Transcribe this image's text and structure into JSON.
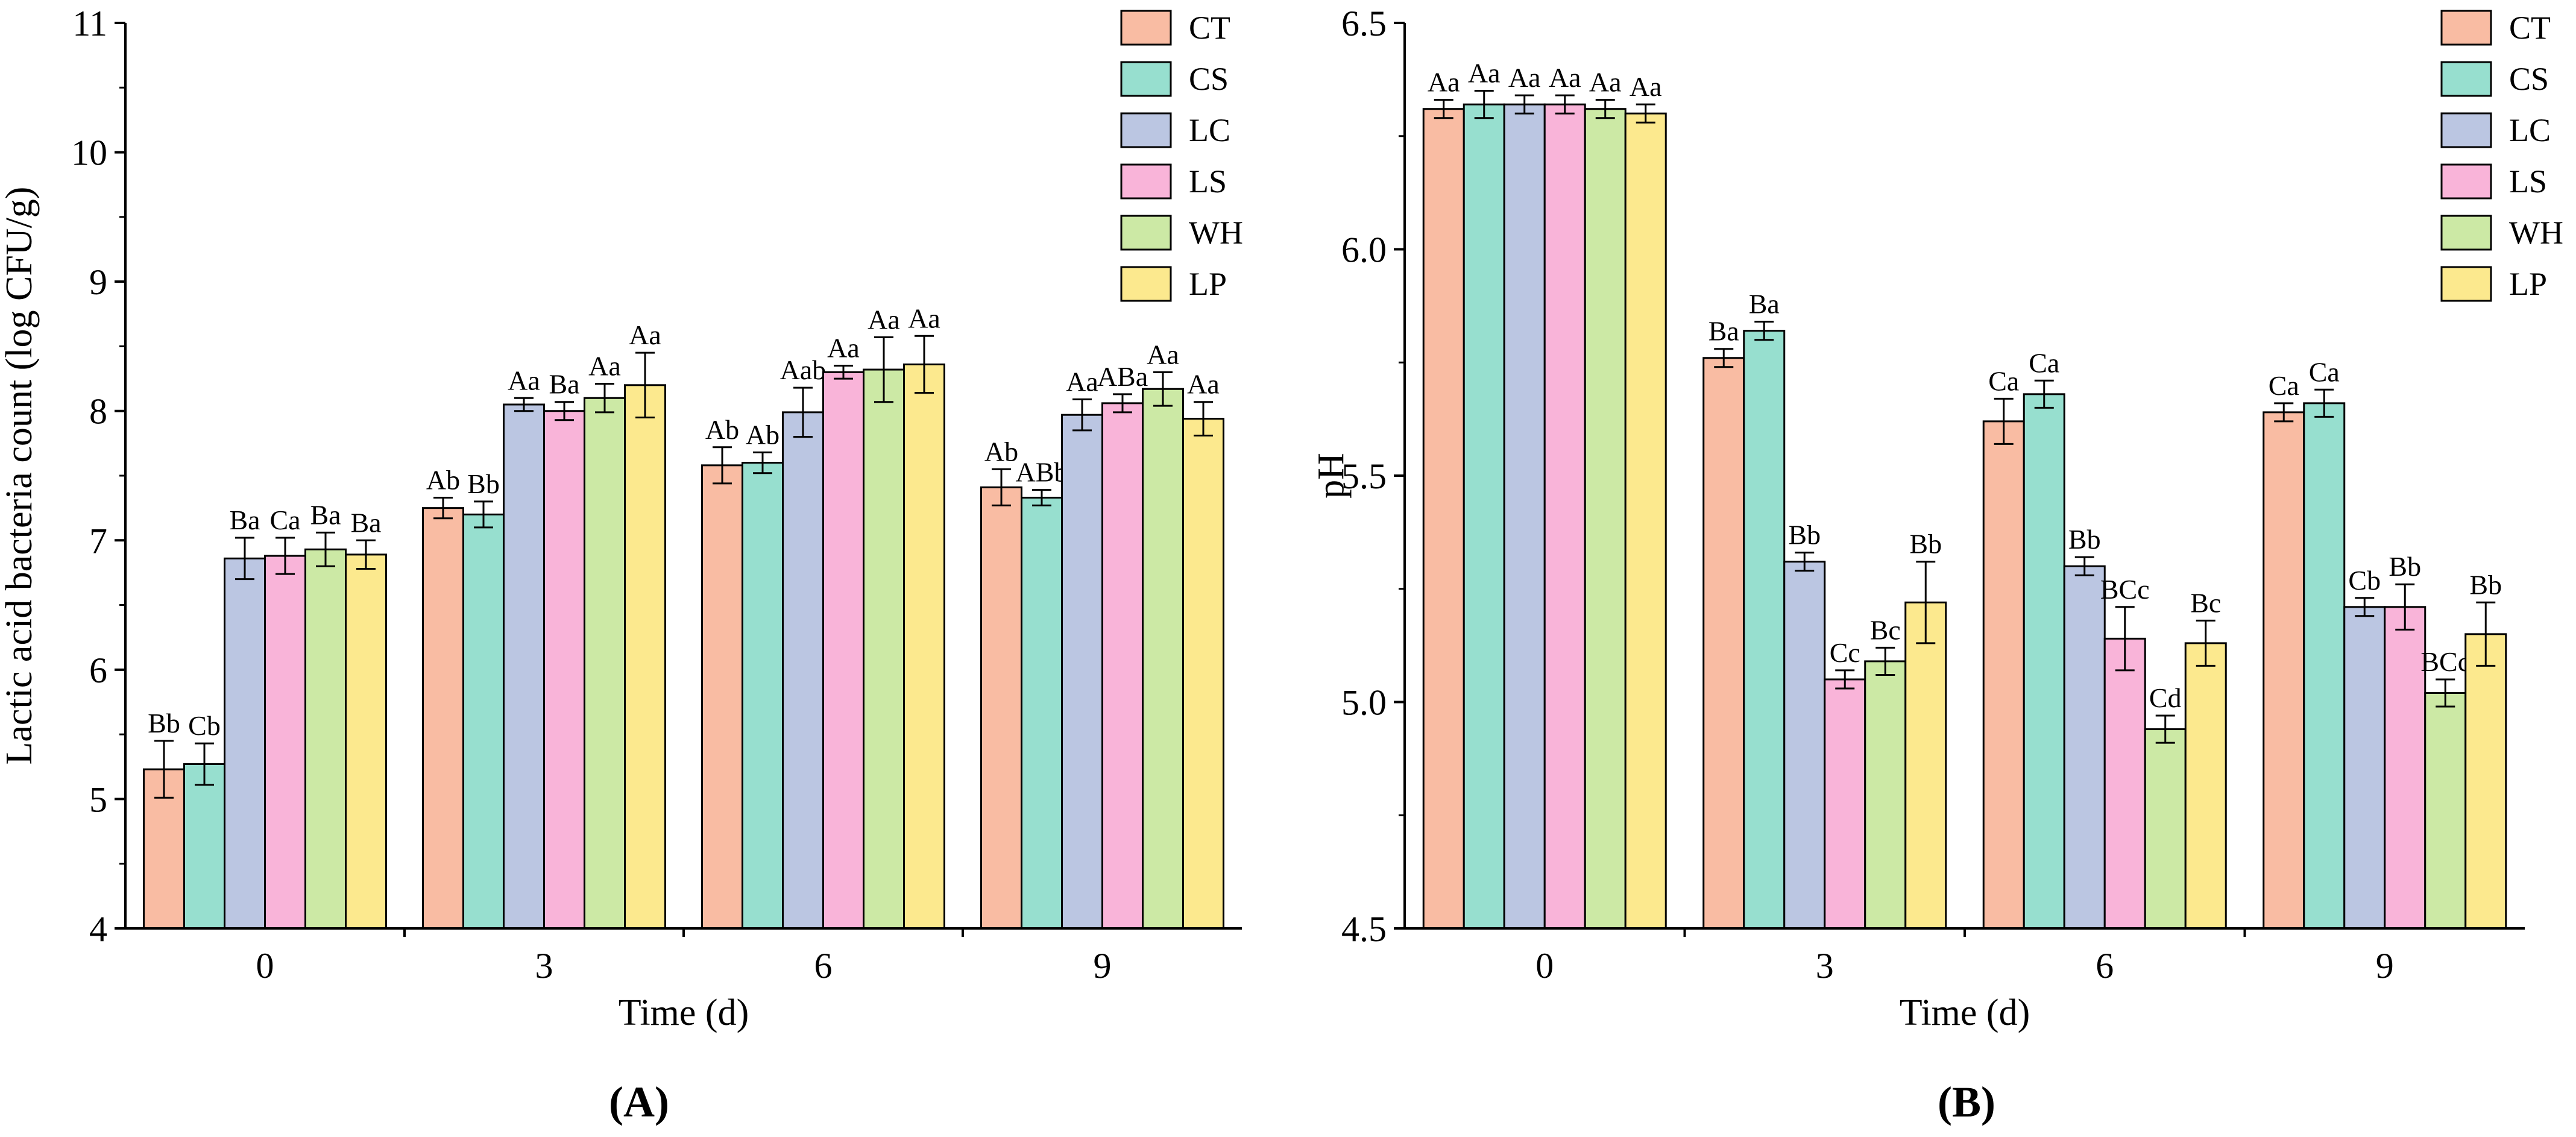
{
  "chart_data": [
    {
      "type": "bar",
      "panel_label": "(A)",
      "title": "",
      "xlabel": "Time (d)",
      "ylabel": "Lactic acid bacteria count (log CFU/g)",
      "ylim": [
        4,
        11
      ],
      "yticks": [
        "4",
        "5",
        "6",
        "7",
        "8",
        "9",
        "10",
        "11"
      ],
      "ytick_values": [
        4,
        5,
        6,
        7,
        8,
        9,
        10,
        11
      ],
      "categories": [
        "0",
        "3",
        "6",
        "9"
      ],
      "legend_position": "top-right",
      "series": [
        {
          "name": "CT",
          "color": "#F9BCA3",
          "values": [
            5.23,
            7.25,
            7.58,
            7.41
          ],
          "errors": [
            0.22,
            0.08,
            0.14,
            0.14
          ],
          "labels": [
            "Bb",
            "Ab",
            "Ab",
            "Ab"
          ]
        },
        {
          "name": "CS",
          "color": "#97DFCF",
          "values": [
            5.27,
            7.2,
            7.6,
            7.33
          ],
          "errors": [
            0.16,
            0.1,
            0.08,
            0.06
          ],
          "labels": [
            "Cb",
            "Bb",
            "Ab",
            "ABb"
          ]
        },
        {
          "name": "LC",
          "color": "#BBC6E2",
          "values": [
            6.86,
            8.05,
            7.99,
            7.97
          ],
          "errors": [
            0.16,
            0.05,
            0.19,
            0.12
          ],
          "labels": [
            "Ba",
            "Aa",
            "Aab",
            "Aa"
          ]
        },
        {
          "name": "LS",
          "color": "#F9B4D9",
          "values": [
            6.88,
            8.0,
            8.3,
            8.06
          ],
          "errors": [
            0.14,
            0.07,
            0.05,
            0.07
          ],
          "labels": [
            "Ca",
            "Ba",
            "Aa",
            "ABa"
          ]
        },
        {
          "name": "WH",
          "color": "#CCE9A5",
          "values": [
            6.93,
            8.1,
            8.32,
            8.17
          ],
          "errors": [
            0.13,
            0.11,
            0.25,
            0.13
          ],
          "labels": [
            "Ba",
            "Aa",
            "Aa",
            "Aa"
          ]
        },
        {
          "name": "LP",
          "color": "#FCE98E",
          "values": [
            6.89,
            8.2,
            8.36,
            7.94
          ],
          "errors": [
            0.11,
            0.25,
            0.22,
            0.13
          ],
          "labels": [
            "Ba",
            "Aa",
            "Aa",
            "Aa"
          ]
        }
      ]
    },
    {
      "type": "bar",
      "panel_label": "(B)",
      "title": "",
      "xlabel": "Time (d)",
      "ylabel": "pH",
      "ylim": [
        4.5,
        6.5
      ],
      "yticks": [
        "4.5",
        "5.0",
        "5.5",
        "6.0",
        "6.5"
      ],
      "ytick_values": [
        4.5,
        5.0,
        5.5,
        6.0,
        6.5
      ],
      "categories": [
        "0",
        "3",
        "6",
        "9"
      ],
      "legend_position": "top-right",
      "series": [
        {
          "name": "CT",
          "color": "#F9BCA3",
          "values": [
            6.31,
            5.76,
            5.62,
            5.64
          ],
          "errors": [
            0.02,
            0.02,
            0.05,
            0.02
          ],
          "labels": [
            "Aa",
            "Ba",
            "Ca",
            "Ca"
          ]
        },
        {
          "name": "CS",
          "color": "#97DFCF",
          "values": [
            6.32,
            5.82,
            5.68,
            5.66
          ],
          "errors": [
            0.03,
            0.02,
            0.03,
            0.03
          ],
          "labels": [
            "Aa",
            "Ba",
            "Ca",
            "Ca"
          ]
        },
        {
          "name": "LC",
          "color": "#BBC6E2",
          "values": [
            6.32,
            5.31,
            5.3,
            5.21
          ],
          "errors": [
            0.02,
            0.02,
            0.02,
            0.02
          ],
          "labels": [
            "Aa",
            "Bb",
            "Bb",
            "Cb"
          ]
        },
        {
          "name": "LS",
          "color": "#F9B4D9",
          "values": [
            6.32,
            5.05,
            5.14,
            5.21
          ],
          "errors": [
            0.02,
            0.02,
            0.07,
            0.05
          ],
          "labels": [
            "Aa",
            "Cc",
            "BCc",
            "Bb"
          ]
        },
        {
          "name": "WH",
          "color": "#CCE9A5",
          "values": [
            6.31,
            5.09,
            4.94,
            5.02
          ],
          "errors": [
            0.02,
            0.03,
            0.03,
            0.03
          ],
          "labels": [
            "Aa",
            "Bc",
            "Cd",
            "BCc"
          ]
        },
        {
          "name": "LP",
          "color": "#FCE98E",
          "values": [
            6.3,
            5.22,
            5.13,
            5.15
          ],
          "errors": [
            0.02,
            0.09,
            0.05,
            0.07
          ],
          "labels": [
            "Aa",
            "Bb",
            "Bc",
            "Bb"
          ]
        }
      ]
    }
  ]
}
